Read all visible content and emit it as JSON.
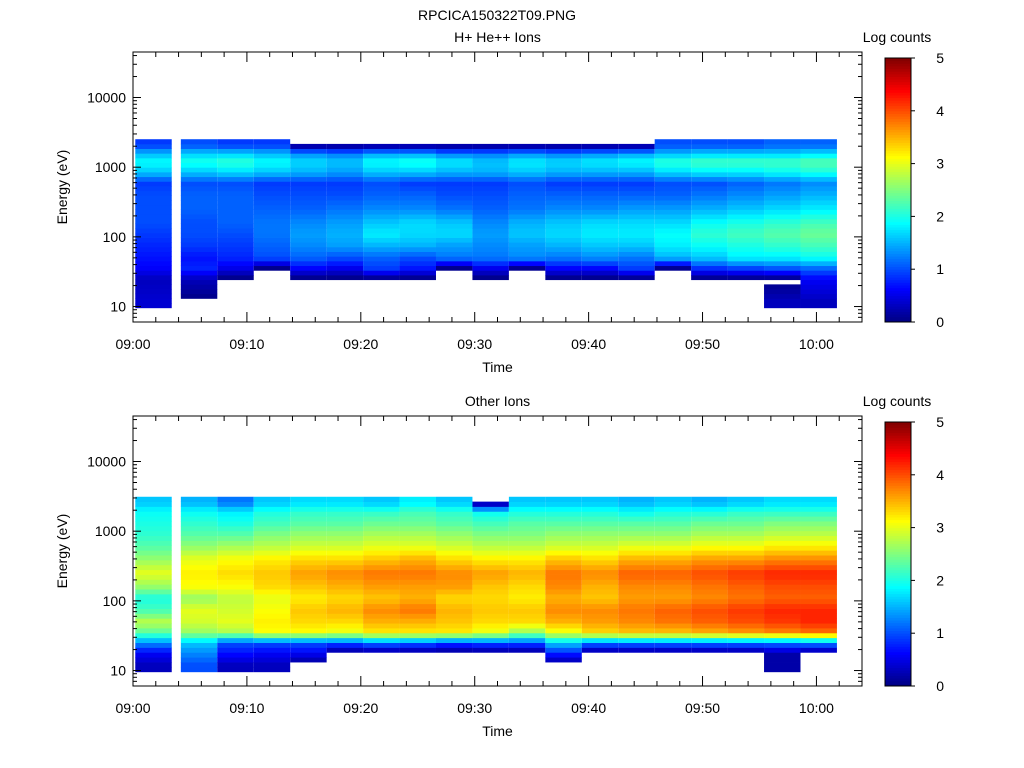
{
  "figure_title": "RPCICA150322T09.PNG",
  "chart_data": [
    {
      "type": "heatmap",
      "title": "H+ He++ Ions",
      "xlabel": "Time",
      "ylabel": "Energy (eV)",
      "x_ticks": [
        "09:00",
        "09:10",
        "09:20",
        "09:30",
        "09:40",
        "09:50",
        "10:00"
      ],
      "x_range_minutes": [
        0,
        64
      ],
      "y_scale": "log",
      "y_ticks": [
        "10",
        "100",
        "1000",
        "10000"
      ],
      "ylim": [
        6,
        45000
      ],
      "colorbar_label": "Log counts",
      "colorbar_ticks": [
        "0",
        "1",
        "2",
        "3",
        "4",
        "5"
      ],
      "zlim": [
        0,
        5
      ],
      "colormap": "jet",
      "column_start_minutes": [
        0.2,
        4.2,
        7.4,
        10.6,
        13.8,
        17.0,
        20.2,
        23.4,
        26.6,
        29.8,
        33.0,
        36.2,
        39.4,
        42.6,
        45.8,
        49.0,
        52.2,
        55.4,
        58.6
      ],
      "column_width_minutes": 3.2,
      "profile_energy_eV": [
        12,
        25,
        35,
        50,
        75,
        110,
        160,
        250,
        400,
        600,
        850,
        1200,
        1600,
        2100
      ],
      "column_profiles": [
        [
          0.4,
          0.3,
          0.6,
          0.7,
          0.8,
          0.9,
          1.0,
          1.0,
          1.0,
          0.9,
          1.6,
          1.9,
          1.5,
          0.9
        ],
        [
          0.0,
          0.3,
          0.8,
          0.7,
          0.9,
          1.0,
          1.0,
          1.1,
          1.1,
          1.0,
          1.6,
          2.0,
          1.6,
          1.0
        ],
        [
          0.0,
          0.0,
          0.5,
          0.8,
          0.9,
          1.0,
          1.1,
          1.1,
          1.1,
          1.0,
          1.7,
          2.1,
          1.6,
          0.9
        ],
        [
          0.0,
          0.0,
          0.0,
          1.0,
          1.1,
          1.2,
          1.2,
          1.1,
          1.0,
          0.9,
          1.6,
          1.9,
          1.5,
          0.9
        ],
        [
          0.0,
          0.0,
          0.6,
          1.1,
          1.3,
          1.4,
          1.3,
          1.1,
          1.0,
          0.9,
          1.5,
          1.7,
          1.3,
          0.0
        ],
        [
          0.0,
          0.0,
          0.5,
          1.0,
          1.4,
          1.5,
          1.4,
          1.2,
          1.0,
          0.9,
          1.4,
          1.6,
          1.2,
          0.0
        ],
        [
          0.0,
          0.0,
          0.9,
          1.1,
          1.5,
          1.8,
          1.6,
          1.3,
          1.1,
          1.0,
          1.6,
          1.9,
          1.4,
          0.0
        ],
        [
          0.0,
          0.0,
          0.7,
          1.0,
          1.5,
          1.7,
          1.7,
          1.3,
          1.1,
          0.9,
          1.6,
          2.0,
          1.4,
          0.0
        ],
        [
          0.0,
          0.0,
          0.0,
          1.2,
          1.4,
          1.7,
          1.6,
          1.2,
          1.0,
          0.9,
          1.5,
          1.8,
          1.2,
          0.0
        ],
        [
          0.0,
          0.0,
          0.5,
          1.2,
          1.3,
          1.4,
          1.3,
          1.1,
          1.0,
          0.9,
          1.5,
          1.6,
          1.2,
          0.0
        ],
        [
          0.0,
          0.0,
          0.0,
          1.3,
          1.4,
          1.6,
          1.5,
          1.2,
          1.1,
          1.0,
          1.6,
          1.8,
          1.3,
          0.0
        ],
        [
          0.0,
          0.0,
          0.6,
          1.2,
          1.5,
          1.7,
          1.6,
          1.3,
          1.1,
          0.9,
          1.5,
          1.7,
          1.2,
          0.0
        ],
        [
          0.0,
          0.0,
          0.6,
          1.3,
          1.6,
          1.8,
          1.7,
          1.3,
          1.1,
          0.9,
          1.5,
          1.8,
          1.3,
          0.0
        ],
        [
          0.0,
          0.0,
          0.9,
          1.2,
          1.6,
          1.8,
          1.7,
          1.4,
          1.1,
          0.9,
          1.5,
          1.9,
          1.4,
          0.0
        ],
        [
          0.0,
          0.0,
          0.0,
          1.5,
          1.8,
          1.9,
          1.7,
          1.4,
          1.1,
          1.0,
          1.7,
          2.1,
          1.5,
          1.0
        ],
        [
          0.0,
          0.0,
          0.8,
          1.6,
          1.9,
          2.1,
          1.9,
          1.5,
          1.2,
          1.0,
          1.8,
          2.2,
          1.6,
          1.0
        ],
        [
          0.0,
          0.0,
          0.9,
          1.8,
          2.0,
          2.2,
          2.0,
          1.6,
          1.3,
          1.1,
          1.8,
          2.2,
          1.6,
          1.0
        ],
        [
          0.3,
          0.0,
          1.0,
          1.8,
          2.1,
          2.3,
          2.1,
          1.7,
          1.4,
          1.2,
          1.9,
          2.2,
          1.6,
          1.1
        ],
        [
          0.3,
          0.6,
          1.1,
          1.9,
          2.2,
          2.4,
          2.2,
          1.8,
          1.5,
          1.3,
          2.0,
          2.3,
          1.7,
          1.1
        ]
      ]
    },
    {
      "type": "heatmap",
      "title": "Other Ions",
      "xlabel": "Time",
      "ylabel": "Energy (eV)",
      "x_ticks": [
        "09:00",
        "09:10",
        "09:20",
        "09:30",
        "09:40",
        "09:50",
        "10:00"
      ],
      "x_range_minutes": [
        0,
        64
      ],
      "y_scale": "log",
      "y_ticks": [
        "10",
        "100",
        "1000",
        "10000"
      ],
      "ylim": [
        6,
        45000
      ],
      "colorbar_label": "Log counts",
      "colorbar_ticks": [
        "0",
        "1",
        "2",
        "3",
        "4",
        "5"
      ],
      "zlim": [
        0,
        5
      ],
      "colormap": "jet",
      "column_start_minutes": [
        0.2,
        4.2,
        7.4,
        10.6,
        13.8,
        17.0,
        20.2,
        23.4,
        26.6,
        29.8,
        33.0,
        36.2,
        39.4,
        42.6,
        45.8,
        49.0,
        52.2,
        55.4,
        58.6
      ],
      "column_width_minutes": 3.2,
      "profile_energy_eV": [
        12,
        18,
        25,
        35,
        50,
        75,
        110,
        160,
        250,
        400,
        600,
        900,
        1300,
        1900,
        2600
      ],
      "column_profiles": [
        [
          0.3,
          0.6,
          1.3,
          2.3,
          2.8,
          2.2,
          2.0,
          2.6,
          3.0,
          2.6,
          2.3,
          2.1,
          2.0,
          1.9,
          1.6
        ],
        [
          1.0,
          1.3,
          1.6,
          2.6,
          2.9,
          3.0,
          2.6,
          3.1,
          3.2,
          3.0,
          2.6,
          2.3,
          2.1,
          1.9,
          1.5
        ],
        [
          0.3,
          0.7,
          1.0,
          2.7,
          3.0,
          2.9,
          2.8,
          3.1,
          3.3,
          3.1,
          2.7,
          2.3,
          2.0,
          1.8,
          1.2
        ],
        [
          0.3,
          0.6,
          1.0,
          3.1,
          3.2,
          3.1,
          3.0,
          3.3,
          3.4,
          3.2,
          2.8,
          2.5,
          2.2,
          2.0,
          1.6
        ],
        [
          0.0,
          0.6,
          1.0,
          3.1,
          3.3,
          3.4,
          3.2,
          3.4,
          3.6,
          3.3,
          2.9,
          2.6,
          2.3,
          2.1,
          1.7
        ],
        [
          0.0,
          0.0,
          1.0,
          3.0,
          3.3,
          3.5,
          3.3,
          3.5,
          3.7,
          3.3,
          2.9,
          2.6,
          2.3,
          2.1,
          1.7
        ],
        [
          0.0,
          0.0,
          1.2,
          3.2,
          3.5,
          3.7,
          3.4,
          3.6,
          3.8,
          3.4,
          3.0,
          2.7,
          2.4,
          2.1,
          1.6
        ],
        [
          0.0,
          0.0,
          1.1,
          3.2,
          3.5,
          3.8,
          3.5,
          3.6,
          3.8,
          3.5,
          3.0,
          2.7,
          2.4,
          2.2,
          1.8
        ],
        [
          0.0,
          0.0,
          0.9,
          3.2,
          3.4,
          3.5,
          3.3,
          3.6,
          3.7,
          3.3,
          2.9,
          2.6,
          2.3,
          2.1,
          1.6
        ],
        [
          0.0,
          0.0,
          1.0,
          3.0,
          3.3,
          3.4,
          3.3,
          3.4,
          3.6,
          3.2,
          2.8,
          2.5,
          2.2,
          1.9,
          0.0
        ],
        [
          0.0,
          0.0,
          1.0,
          2.6,
          3.3,
          3.4,
          3.2,
          3.3,
          3.5,
          3.2,
          2.8,
          2.5,
          2.3,
          2.0,
          1.6
        ],
        [
          0.0,
          0.8,
          1.6,
          3.0,
          3.5,
          3.7,
          3.5,
          3.7,
          3.8,
          3.4,
          2.9,
          2.6,
          2.3,
          2.0,
          1.6
        ],
        [
          0.0,
          0.0,
          1.2,
          3.3,
          3.6,
          3.7,
          3.4,
          3.5,
          3.7,
          3.3,
          2.9,
          2.6,
          2.3,
          2.0,
          1.6
        ],
        [
          0.0,
          0.0,
          1.2,
          3.4,
          3.7,
          3.8,
          3.6,
          3.7,
          3.9,
          3.5,
          3.0,
          2.6,
          2.3,
          1.9,
          1.5
        ],
        [
          0.0,
          0.0,
          1.2,
          3.4,
          3.8,
          3.9,
          3.6,
          3.7,
          3.9,
          3.5,
          3.0,
          2.6,
          2.3,
          2.0,
          1.6
        ],
        [
          0.0,
          0.0,
          1.2,
          3.5,
          3.9,
          4.0,
          3.7,
          3.8,
          4.0,
          3.6,
          3.1,
          2.7,
          2.4,
          2.0,
          1.5
        ],
        [
          0.0,
          0.0,
          1.2,
          3.6,
          4.0,
          4.1,
          3.8,
          3.9,
          4.1,
          3.6,
          3.1,
          2.7,
          2.4,
          2.1,
          1.6
        ],
        [
          0.2,
          0.2,
          1.2,
          3.7,
          4.1,
          4.2,
          3.9,
          4.0,
          4.2,
          3.7,
          3.2,
          2.8,
          2.5,
          2.1,
          1.7
        ],
        [
          0.0,
          0.0,
          1.3,
          3.8,
          4.2,
          4.2,
          3.9,
          4.0,
          4.2,
          3.7,
          3.2,
          2.8,
          2.5,
          2.1,
          1.7
        ]
      ]
    }
  ]
}
